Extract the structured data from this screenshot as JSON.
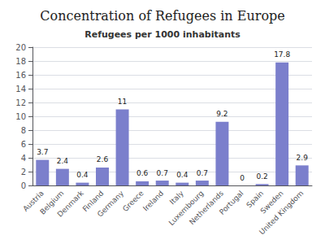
{
  "chart_data": {
    "type": "bar",
    "title": "Concentration of Refugees in Europe",
    "subtitle": "Refugees per 1000 inhabitants",
    "categories": [
      "Austria",
      "Belgium",
      "Denmark",
      "Finland",
      "Germany",
      "Greece",
      "Ireland",
      "Italy",
      "Luxembourg",
      "Netherlands",
      "Portugal",
      "Spain",
      "Sweden",
      "United Kingdom"
    ],
    "values": [
      3.7,
      2.4,
      0.4,
      2.6,
      11,
      0.6,
      0.7,
      0.4,
      0.7,
      9.2,
      0,
      0.2,
      17.8,
      2.9
    ],
    "color": "#7b7fcc",
    "ylim": [
      0,
      20
    ],
    "yticks": [
      0,
      2,
      4,
      6,
      8,
      10,
      12,
      14,
      16,
      18,
      20
    ],
    "grid": true,
    "data_labels": true
  }
}
